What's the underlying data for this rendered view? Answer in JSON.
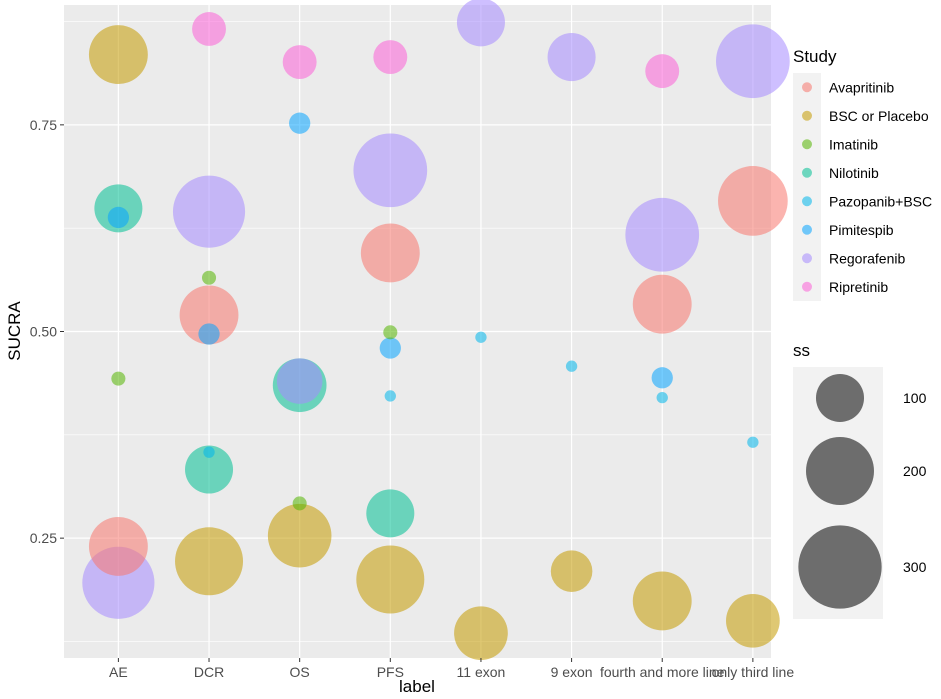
{
  "chart_data": {
    "type": "scatter",
    "subtype": "bubble",
    "xlabel": "label",
    "ylabel": "SUCRA",
    "categories": [
      "AE",
      "DCR",
      "OS",
      "PFS",
      "11 exon",
      "9 exon",
      "fourth and more line",
      "only third line"
    ],
    "y_ticks": [
      0.25,
      0.5,
      0.75
    ],
    "y_tick_labels": [
      "0.25",
      "0.50",
      "0.75"
    ],
    "ylim": [
      0.105,
      0.895
    ],
    "size_range": [
      2,
      350
    ],
    "series": [
      {
        "name": "Avapritinib",
        "color": "#F8766D",
        "points": [
          {
            "x": "AE",
            "y": 0.24,
            "ss": 150
          },
          {
            "x": "DCR",
            "y": 0.52,
            "ss": 150
          },
          {
            "x": "PFS",
            "y": 0.595,
            "ss": 150
          },
          {
            "x": "fourth and more line",
            "y": 0.533,
            "ss": 150
          },
          {
            "x": "only third line",
            "y": 0.658,
            "ss": 210
          }
        ]
      },
      {
        "name": "BSC or Placebo",
        "color": "#C49A00",
        "points": [
          {
            "x": "AE",
            "y": 0.835,
            "ss": 150
          },
          {
            "x": "DCR",
            "y": 0.222,
            "ss": 200
          },
          {
            "x": "OS",
            "y": 0.253,
            "ss": 175
          },
          {
            "x": "PFS",
            "y": 0.2,
            "ss": 200
          },
          {
            "x": "11 exon",
            "y": 0.135,
            "ss": 125
          },
          {
            "x": "9 exon",
            "y": 0.21,
            "ss": 75
          },
          {
            "x": "fourth and more line",
            "y": 0.174,
            "ss": 150
          },
          {
            "x": "only third line",
            "y": 0.15,
            "ss": 125
          }
        ]
      },
      {
        "name": "Imatinib",
        "color": "#53B400",
        "points": [
          {
            "x": "AE",
            "y": 0.443,
            "ss": 9
          },
          {
            "x": "DCR",
            "y": 0.565,
            "ss": 9
          },
          {
            "x": "OS",
            "y": 0.292,
            "ss": 9
          },
          {
            "x": "PFS",
            "y": 0.499,
            "ss": 9
          }
        ]
      },
      {
        "name": "Nilotinib",
        "color": "#00C094",
        "points": [
          {
            "x": "AE",
            "y": 0.649,
            "ss": 100
          },
          {
            "x": "DCR",
            "y": 0.333,
            "ss": 100
          },
          {
            "x": "OS",
            "y": 0.435,
            "ss": 125
          },
          {
            "x": "PFS",
            "y": 0.28,
            "ss": 100
          }
        ]
      },
      {
        "name": "Pazopanib+BSC",
        "color": "#00B6EB",
        "points": [
          {
            "x": "DCR",
            "y": 0.354,
            "ss": 6
          },
          {
            "x": "PFS",
            "y": 0.422,
            "ss": 6
          },
          {
            "x": "11 exon",
            "y": 0.493,
            "ss": 6
          },
          {
            "x": "9 exon",
            "y": 0.458,
            "ss": 6
          },
          {
            "x": "fourth and more line",
            "y": 0.42,
            "ss": 6
          },
          {
            "x": "only third line",
            "y": 0.366,
            "ss": 6
          }
        ]
      },
      {
        "name": "Pimitespib",
        "color": "#06A4FF",
        "points": [
          {
            "x": "AE",
            "y": 0.638,
            "ss": 20
          },
          {
            "x": "DCR",
            "y": 0.497,
            "ss": 20
          },
          {
            "x": "OS",
            "y": 0.752,
            "ss": 20
          },
          {
            "x": "PFS",
            "y": 0.48,
            "ss": 20
          },
          {
            "x": "fourth and more line",
            "y": 0.444,
            "ss": 20
          }
        ]
      },
      {
        "name": "Regorafenib",
        "color": "#A58AFF",
        "points": [
          {
            "x": "AE",
            "y": 0.196,
            "ss": 225
          },
          {
            "x": "DCR",
            "y": 0.645,
            "ss": 225
          },
          {
            "x": "OS",
            "y": 0.44,
            "ss": 90
          },
          {
            "x": "PFS",
            "y": 0.695,
            "ss": 235
          },
          {
            "x": "11 exon",
            "y": 0.874,
            "ss": 100
          },
          {
            "x": "9 exon",
            "y": 0.832,
            "ss": 100
          },
          {
            "x": "fourth and more line",
            "y": 0.617,
            "ss": 235
          },
          {
            "x": "only third line",
            "y": 0.827,
            "ss": 235
          }
        ]
      },
      {
        "name": "Ripretinib",
        "color": "#FB61D7",
        "points": [
          {
            "x": "DCR",
            "y": 0.866,
            "ss": 50
          },
          {
            "x": "OS",
            "y": 0.826,
            "ss": 50
          },
          {
            "x": "PFS",
            "y": 0.832,
            "ss": 50
          },
          {
            "x": "fourth and more line",
            "y": 0.815,
            "ss": 50
          }
        ]
      }
    ],
    "legend": {
      "color_title": "Study",
      "color_entries": [
        "Avapritinib",
        "BSC or Placebo",
        "Imatinib",
        "Nilotinib",
        "Pazopanib+BSC",
        "Pimitespib",
        "Regorafenib",
        "Ripretinib"
      ],
      "size_title": "ss",
      "size_entries": [
        100,
        200,
        300
      ],
      "size_entry_labels": [
        "100",
        "200",
        "300"
      ],
      "position": "right"
    },
    "grid": true,
    "point_alpha": 0.55
  }
}
